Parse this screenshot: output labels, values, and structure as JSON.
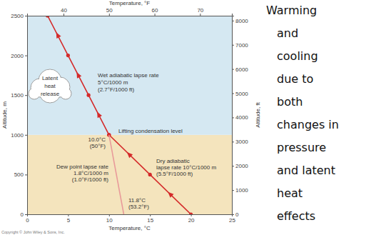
{
  "chart_data": {
    "type": "line",
    "x_label": "Temperature, °C",
    "x2_label": "Temperature, °F",
    "y_label": "Altitude, m",
    "y2_label": "Altitude, ft",
    "xlim": [
      0,
      25
    ],
    "xticks": [
      0,
      5,
      10,
      15,
      20,
      25
    ],
    "x2lim": [
      32,
      77
    ],
    "x2ticks": [
      40,
      50,
      60,
      70
    ],
    "ylim": [
      0,
      2500
    ],
    "yticks": [
      0,
      500,
      1000,
      1500,
      2000,
      2500
    ],
    "y2lim": [
      0,
      8202
    ],
    "y2ticks": [
      0,
      1000,
      2000,
      3000,
      4000,
      5000,
      6000,
      7000,
      8000
    ],
    "bands": [
      {
        "from": 0,
        "to": 1000,
        "color": "#f4e4bd"
      },
      {
        "from": 1000,
        "to": 2500,
        "color": "#d5e8f2"
      }
    ],
    "series": [
      {
        "x": [
          20,
          15,
          10
        ],
        "values": [
          0,
          500,
          1000
        ],
        "color": "#d42a2a",
        "marker": "circle",
        "line_style": "solid"
      },
      {
        "x": [
          10,
          7.5,
          5,
          2.5
        ],
        "values": [
          1000,
          1500,
          2000,
          2500
        ],
        "color": "#d42a2a",
        "marker": "circle",
        "line_style": "solid"
      },
      {
        "x": [
          11.8,
          10
        ],
        "values": [
          0,
          1000
        ],
        "color": "#e89a9a",
        "marker": "none",
        "line_style": "solid"
      }
    ],
    "annotations": [
      {
        "lines": [
          "Latent",
          "heat",
          "release"
        ]
      },
      {
        "lines": [
          "Wet adiabatic lapse rate",
          "5°C/1000 m",
          "(2.7°F/1000 ft)"
        ]
      },
      {
        "lines": [
          "Lifting condensation level"
        ]
      },
      {
        "lines": [
          "10.0°C",
          "(50°F)"
        ]
      },
      {
        "lines": [
          "Dry adiabatic",
          "lapse rate 10°C/1000 m",
          "(5.5°F/1000 ft)"
        ]
      },
      {
        "lines": [
          "Dew point lapse rate",
          "1.8°C/1000 m",
          "(1.0°F/1000 ft)"
        ]
      },
      {
        "lines": [
          "11.8°C",
          "(53.2°F)"
        ]
      }
    ],
    "copyright": "Copyright © John Wiley & Sons, Inc."
  },
  "side_text": [
    "Warming",
    "and",
    "cooling",
    "due to",
    "both",
    "changes in",
    "pressure",
    "and latent",
    "heat",
    "effects"
  ]
}
